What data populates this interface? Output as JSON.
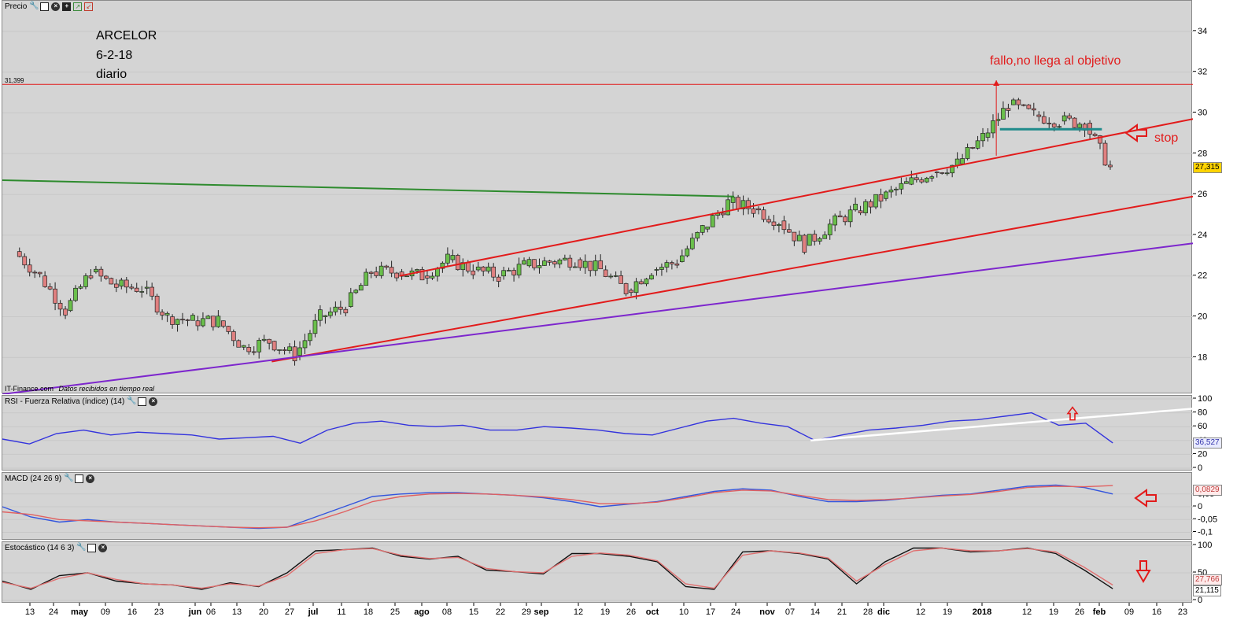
{
  "panels": {
    "price": {
      "title": "Precio",
      "price_level_label": "31,399",
      "last_value": "27,315",
      "source": "IT-Finance.com",
      "source_note": "Datos recibidos en tiempo real"
    },
    "rsi": {
      "title": "RSI - Fuerza Relativa (índice) (14)",
      "last_value": "36,527"
    },
    "macd": {
      "title": "MACD (24 26 9)",
      "last_value": "0,0829"
    },
    "stoch": {
      "title": "Estocástico (14 6 3)",
      "last_value_1": "27,766",
      "last_value_2": "21,115"
    }
  },
  "annotations": {
    "stock_name": "ARCELOR",
    "date": "6-2-18",
    "timeframe": "diario",
    "target_note": "fallo,no llega al objetivo",
    "stop_note": "stop"
  },
  "x_axis_labels": [
    "13",
    "24",
    "may",
    "09",
    "16",
    "23",
    "jun",
    "06",
    "13",
    "20",
    "27",
    "jul",
    "11",
    "18",
    "25",
    "ago",
    "08",
    "15",
    "22",
    "29",
    "sep",
    "12",
    "19",
    "26",
    "oct",
    "10",
    "17",
    "24",
    "nov",
    "07",
    "14",
    "21",
    "28",
    "dic",
    "12",
    "19",
    "2018",
    "12",
    "19",
    "26",
    "feb",
    "09",
    "16",
    "23"
  ],
  "colors": {
    "panel_bg": "#d4d4d4",
    "bull": "#6abf4b",
    "bear": "#e08080",
    "red_line": "#e21b1b",
    "green_line": "#2e8b2e",
    "purple_line": "#7d26cd",
    "teal_line": "#1e8a8a",
    "rsi_line": "#3333dd",
    "macd_line": "#3355dd",
    "signal_line": "#e06060",
    "stoch_k": "#111111",
    "stoch_d": "#e07070"
  },
  "chart_data": [
    {
      "type": "candlestick",
      "title": "Precio",
      "ylim": [
        16.2,
        35.5
      ],
      "y_ticks": [
        18,
        20,
        22,
        24,
        26,
        28,
        30,
        32,
        34
      ],
      "x_range": [
        "2017-04-06",
        "2018-02-27"
      ],
      "last_value": 27.315,
      "horizontal_levels": [
        {
          "value": 31.399,
          "color": "red"
        }
      ],
      "trendlines": [
        {
          "name": "upper channel",
          "color": "red",
          "from": [
            "2017-07-24",
            22.0
          ],
          "to": [
            "2018-02-27",
            29.7
          ]
        },
        {
          "name": "lower channel",
          "color": "red",
          "from": [
            "2017-06-19",
            17.8
          ],
          "to": [
            "2018-02-27",
            25.9
          ]
        },
        {
          "name": "long-term support",
          "color": "purple",
          "from": [
            "2017-04-06",
            16.2
          ],
          "to": [
            "2018-02-27",
            23.6
          ]
        },
        {
          "name": "resistance",
          "color": "green",
          "from": [
            "2017-04-06",
            26.7
          ],
          "to": [
            "2017-10-24",
            25.9
          ]
        },
        {
          "name": "neckline",
          "color": "teal",
          "from": [
            "2018-01-05",
            29.2
          ],
          "to": [
            "2018-02-02",
            29.2
          ]
        }
      ],
      "close_series": [
        [
          "2017-04-10",
          23.2
        ],
        [
          "2017-04-17",
          22.0
        ],
        [
          "2017-04-24",
          20.3
        ],
        [
          "2017-05-01",
          22.2
        ],
        [
          "2017-05-08",
          21.5
        ],
        [
          "2017-05-15",
          21.4
        ],
        [
          "2017-05-22",
          20.0
        ],
        [
          "2017-05-29",
          19.8
        ],
        [
          "2017-06-05",
          19.8
        ],
        [
          "2017-06-12",
          18.5
        ],
        [
          "2017-06-19",
          18.8
        ],
        [
          "2017-06-26",
          18.1
        ],
        [
          "2017-07-03",
          20.0
        ],
        [
          "2017-07-10",
          20.5
        ],
        [
          "2017-07-17",
          22.2
        ],
        [
          "2017-07-24",
          22.2
        ],
        [
          "2017-07-31",
          22.0
        ],
        [
          "2017-08-07",
          22.8
        ],
        [
          "2017-08-14",
          22.3
        ],
        [
          "2017-08-21",
          22.0
        ],
        [
          "2017-08-28",
          22.5
        ],
        [
          "2017-09-04",
          22.7
        ],
        [
          "2017-09-11",
          22.8
        ],
        [
          "2017-09-18",
          22.3
        ],
        [
          "2017-09-25",
          21.3
        ],
        [
          "2017-10-02",
          22.3
        ],
        [
          "2017-10-09",
          22.7
        ],
        [
          "2017-10-16",
          24.3
        ],
        [
          "2017-10-23",
          25.6
        ],
        [
          "2017-10-30",
          25.3
        ],
        [
          "2017-11-06",
          24.7
        ],
        [
          "2017-11-13",
          23.5
        ],
        [
          "2017-11-20",
          24.5
        ],
        [
          "2017-11-27",
          25.2
        ],
        [
          "2017-12-04",
          25.8
        ],
        [
          "2017-12-11",
          26.5
        ],
        [
          "2017-12-18",
          27.1
        ],
        [
          "2017-12-25",
          27.5
        ],
        [
          "2018-01-01",
          28.8
        ],
        [
          "2018-01-08",
          30.4
        ],
        [
          "2018-01-15",
          29.9
        ],
        [
          "2018-01-22",
          29.6
        ],
        [
          "2018-01-29",
          29.5
        ],
        [
          "2018-02-05",
          27.3
        ]
      ]
    },
    {
      "type": "line",
      "title": "RSI - Fuerza Relativa (índice) (14)",
      "ylim": [
        0,
        100
      ],
      "y_ticks": [
        0,
        20,
        40,
        60,
        80,
        100
      ],
      "last_value": 36.527,
      "series": [
        {
          "name": "RSI",
          "values": [
            42,
            35,
            50,
            55,
            48,
            52,
            50,
            48,
            42,
            44,
            46,
            36,
            55,
            65,
            68,
            62,
            60,
            62,
            55,
            55,
            60,
            58,
            55,
            50,
            48,
            58,
            68,
            72,
            65,
            60,
            40,
            48,
            55,
            58,
            62,
            68,
            70,
            75,
            80,
            62,
            65,
            36.5
          ]
        }
      ]
    },
    {
      "type": "line",
      "title": "MACD (24 26 9)",
      "ylim": [
        -0.12,
        0.12
      ],
      "y_ticks": [
        -0.1,
        -0.05,
        0,
        0.05
      ],
      "last_value": 0.0829,
      "series": [
        {
          "name": "MACD",
          "values": [
            0.0,
            -0.04,
            -0.06,
            -0.05,
            -0.06,
            -0.065,
            -0.07,
            -0.075,
            -0.08,
            -0.085,
            -0.08,
            -0.04,
            0.0,
            0.04,
            0.05,
            0.055,
            0.055,
            0.05,
            0.045,
            0.035,
            0.02,
            0.0,
            0.01,
            0.02,
            0.04,
            0.06,
            0.07,
            0.065,
            0.04,
            0.02,
            0.02,
            0.025,
            0.035,
            0.045,
            0.05,
            0.065,
            0.08,
            0.085,
            0.075,
            0.05
          ]
        },
        {
          "name": "Signal",
          "values": [
            -0.02,
            -0.03,
            -0.05,
            -0.055,
            -0.06,
            -0.065,
            -0.07,
            -0.075,
            -0.08,
            -0.082,
            -0.08,
            -0.055,
            -0.02,
            0.02,
            0.04,
            0.05,
            0.052,
            0.05,
            0.045,
            0.038,
            0.028,
            0.012,
            0.012,
            0.018,
            0.035,
            0.055,
            0.065,
            0.062,
            0.045,
            0.028,
            0.025,
            0.028,
            0.034,
            0.042,
            0.048,
            0.06,
            0.075,
            0.08,
            0.078,
            0.0829
          ]
        }
      ]
    },
    {
      "type": "line",
      "title": "Estocástico (14 6 3)",
      "ylim": [
        0,
        100
      ],
      "y_ticks": [
        0,
        50,
        100
      ],
      "series": [
        {
          "name": "%K",
          "values": [
            35,
            20,
            45,
            50,
            35,
            30,
            28,
            20,
            32,
            25,
            50,
            90,
            92,
            95,
            80,
            75,
            80,
            55,
            52,
            48,
            85,
            85,
            80,
            70,
            25,
            20,
            88,
            90,
            85,
            75,
            30,
            70,
            95,
            95,
            88,
            90,
            95,
            85,
            55,
            21.1
          ]
        },
        {
          "name": "%D",
          "values": [
            33,
            22,
            40,
            50,
            38,
            30,
            28,
            22,
            30,
            26,
            45,
            85,
            92,
            94,
            82,
            76,
            78,
            58,
            52,
            50,
            80,
            86,
            82,
            72,
            30,
            22,
            82,
            90,
            86,
            77,
            35,
            65,
            90,
            95,
            90,
            90,
            94,
            88,
            60,
            27.8
          ]
        }
      ]
    }
  ]
}
